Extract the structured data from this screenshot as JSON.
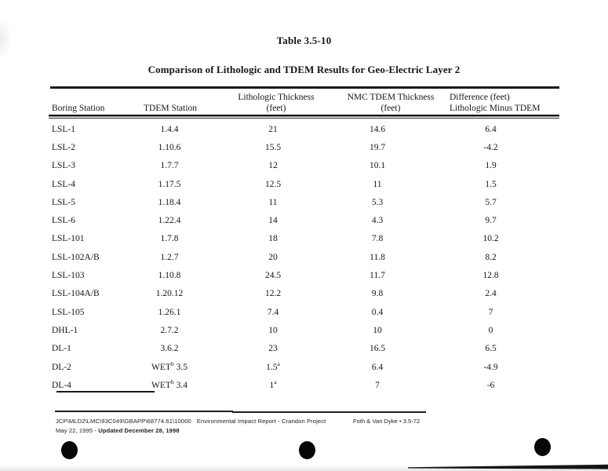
{
  "title": "Table 3.5-10",
  "subtitle": "Comparison of Lithologic and TDEM Results for Geo-Electric Layer 2",
  "table": {
    "headers": [
      {
        "lines": [
          "Boring Station"
        ]
      },
      {
        "lines": [
          "TDEM Station"
        ]
      },
      {
        "lines": [
          "Lithologic Thickness",
          "(feet)"
        ]
      },
      {
        "lines": [
          "NMC TDEM Thickness",
          "(feet)"
        ]
      },
      {
        "lines": [
          "Difference (feet)",
          "Lithologic Minus TDEM"
        ]
      }
    ],
    "rows": [
      [
        "LSL-1",
        "1.4.4",
        "21",
        "14.6",
        "6.4"
      ],
      [
        "LSL-2",
        "1.10.6",
        "15.5",
        "19.7",
        "-4.2"
      ],
      [
        "LSL-3",
        "1.7.7",
        "12",
        "10.1",
        "1.9"
      ],
      [
        "LSL-4",
        "1.17.5",
        "12.5",
        "11",
        "1.5"
      ],
      [
        "LSL-5",
        "1.18.4",
        "11",
        "5.3",
        "5.7"
      ],
      [
        "LSL-6",
        "1.22.4",
        "14",
        "4.3",
        "9.7"
      ],
      [
        "LSL-101",
        "1.7.8",
        "18",
        "7.8",
        "10.2"
      ],
      [
        "LSL-102A/B",
        "1.2.7",
        "20",
        "11.8",
        "8.2"
      ],
      [
        "LSL-103",
        "1.10.8",
        "24.5",
        "11.7",
        "12.8"
      ],
      [
        "LSL-104A/B",
        "1.20.12",
        "12.2",
        "9.8",
        "2.4"
      ],
      [
        "LSL-105",
        "1.26.1",
        "7.4",
        "0.4",
        "7"
      ],
      [
        "DHL-1",
        "2.7.2",
        "10",
        "10",
        "0"
      ],
      [
        "DL-1",
        "3.6.2",
        "23",
        "16.5",
        "6.5"
      ],
      [
        "DL-2",
        "WET^b 3.5",
        "1.5^a",
        "6.4",
        "-4.9"
      ],
      [
        "DL-4",
        "WET^b 3.4",
        "1^a",
        "7",
        "-6"
      ]
    ]
  },
  "footer": {
    "doc_path": "JCP\\MLD2\\LMC\\93C049\\GBAPP\\68774.61\\10000",
    "doc_title": "Environmental Impact Report - Crandon Project",
    "date_normal": "May 22, 1995 - ",
    "date_bold": "Updated December 28, 1998",
    "right_text": "Foth & Van Dyke • 3.5-72"
  },
  "colors": {
    "paper": "#ffffff",
    "ink": "#161616",
    "rule": "#1a1a1a"
  }
}
